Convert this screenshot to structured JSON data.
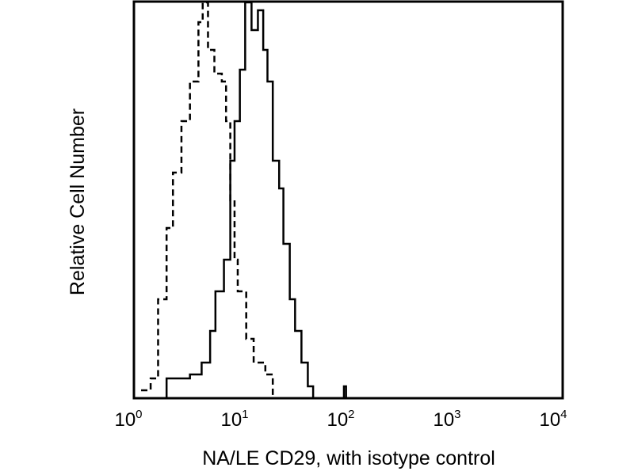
{
  "chart_data": {
    "type": "line",
    "title": "",
    "xlabel": "NA/LE CD29, with isotype control",
    "ylabel": "Relative Cell Number",
    "xscale": "log",
    "xlim": [
      1,
      10000
    ],
    "ylim": [
      0,
      100
    ],
    "xticks": [
      {
        "base": "10",
        "exp": "0"
      },
      {
        "base": "10",
        "exp": "1"
      },
      {
        "base": "10",
        "exp": "2"
      },
      {
        "base": "10",
        "exp": "3"
      },
      {
        "base": "10",
        "exp": "4"
      }
    ],
    "grid": false,
    "series": [
      {
        "name": "isotype control",
        "style": "dashed",
        "log10_x": [
          0.06,
          0.15,
          0.22,
          0.3,
          0.36,
          0.44,
          0.52,
          0.6,
          0.64,
          0.69,
          0.75,
          0.82,
          0.86,
          0.9,
          0.94,
          0.97,
          1.05,
          1.12,
          1.23,
          1.3
        ],
        "y": [
          2,
          5,
          25,
          43,
          57,
          70,
          80,
          95,
          100,
          88,
          82,
          80,
          70,
          50,
          35,
          27,
          15,
          9,
          6,
          0
        ]
      },
      {
        "name": "NA/LE CD29",
        "style": "solid",
        "log10_x": [
          0.22,
          0.3,
          0.52,
          0.63,
          0.71,
          0.76,
          0.84,
          0.9,
          0.94,
          0.99,
          1.04,
          1.1,
          1.16,
          1.21,
          1.25,
          1.3,
          1.36,
          1.4,
          1.46,
          1.51,
          1.57,
          1.63,
          1.68,
          1.95,
          1.97,
          1.99
        ],
        "y": [
          0,
          5,
          6,
          9,
          17,
          27,
          35,
          60,
          70,
          83,
          100,
          93,
          98,
          88,
          80,
          60,
          53,
          39,
          25,
          17,
          9,
          3,
          0,
          0,
          3,
          0
        ]
      }
    ]
  }
}
